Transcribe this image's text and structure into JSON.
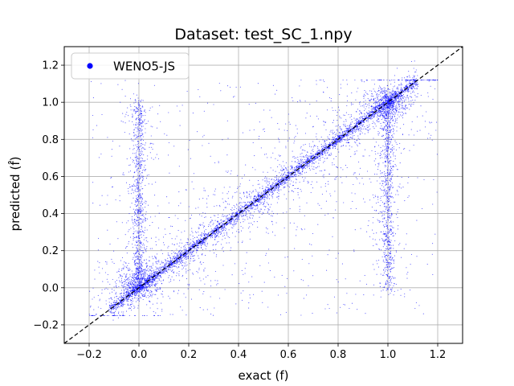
{
  "chart_data": {
    "type": "scatter",
    "title": "Dataset: test_SC_1.npy",
    "xlabel": "exact (f)",
    "ylabel": "predicted (f̂)",
    "xlim": [
      -0.3,
      1.3
    ],
    "ylim": [
      -0.3,
      1.3
    ],
    "xticks": [
      "−0.2",
      "0.0",
      "0.2",
      "0.4",
      "0.6",
      "0.8",
      "1.0",
      "1.2"
    ],
    "yticks": [
      "−0.2",
      "0.0",
      "0.2",
      "0.4",
      "0.6",
      "0.8",
      "1.0",
      "1.2"
    ],
    "grid": true,
    "legend_position": "top-left",
    "series": [
      {
        "name": "WENO5-JS",
        "color": "#0000ff",
        "marker": "dot",
        "clusters": [
          {
            "kind": "diagonal band",
            "x_range": [
              -0.12,
              1.12
            ],
            "y_equals_x": true
          },
          {
            "kind": "vertical band",
            "x": 0.0,
            "y_range": [
              0.0,
              1.0
            ]
          },
          {
            "kind": "vertical band",
            "x": 1.0,
            "y_range": [
              0.0,
              1.0
            ]
          },
          {
            "kind": "diffuse scatter",
            "x_range": [
              -0.2,
              1.2
            ],
            "y_range": [
              -0.15,
              1.12
            ]
          }
        ]
      },
      {
        "name": "",
        "type": "reference line",
        "style": "dashed",
        "color": "#000000",
        "x": [
          -0.3,
          1.3
        ],
        "y": [
          -0.3,
          1.3
        ]
      }
    ]
  }
}
